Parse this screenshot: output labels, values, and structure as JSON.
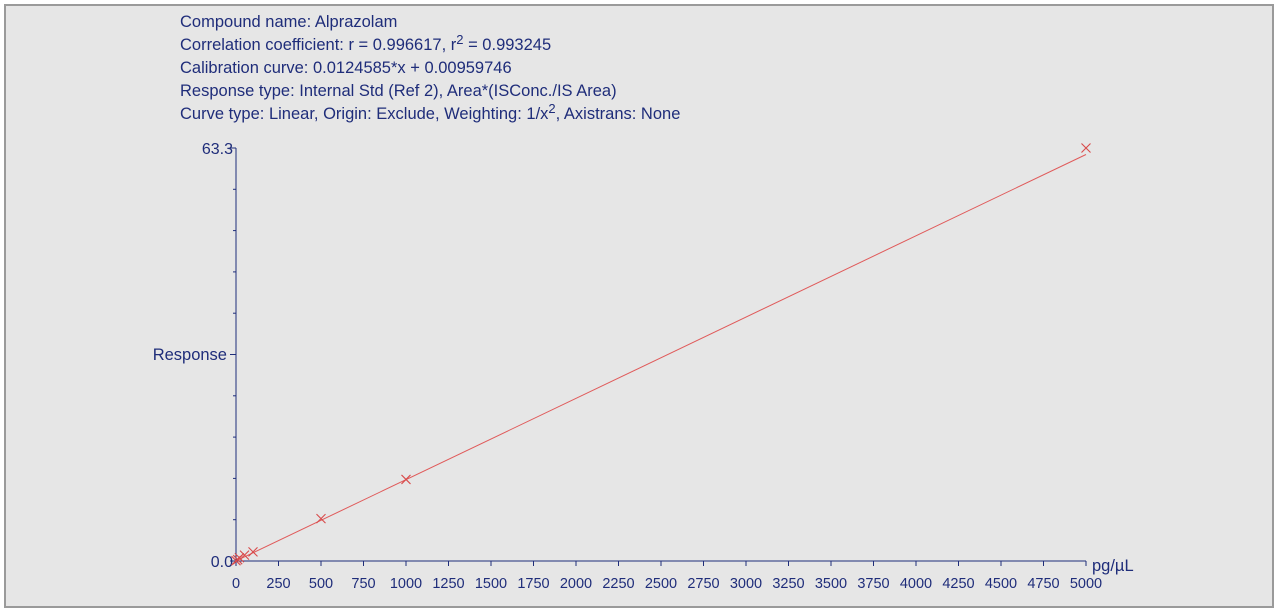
{
  "info": {
    "compound_label": "Compound name:",
    "compound_value": "Alprazolam",
    "corr_label": "Correlation coefficient:",
    "corr_r": "r = 0.996617,",
    "corr_r2_prefix": "r",
    "corr_r2_exp": "2",
    "corr_r2_value": " = 0.993245",
    "calib_label": "Calibration curve:",
    "calib_value": "0.0124585*x + 0.00959746",
    "response_label": "Response type:",
    "response_value": "Internal Std (Ref 2), Area*(ISConc./IS Area)",
    "curve_label": "Curve type:",
    "curve_value_1": "Linear, Origin: Exclude, Weighting: 1/x",
    "curve_value_exp": "2",
    "curve_value_2": ", Axistrans: None"
  },
  "chart_data": {
    "type": "scatter",
    "title": "",
    "xlabel": "pg/µL",
    "ylabel": "Response",
    "xlim": [
      0,
      5000
    ],
    "ylim": [
      0.0,
      63.3
    ],
    "y_tick_labels": [
      "0.0",
      "63.3"
    ],
    "x_ticks": [
      0,
      250,
      500,
      750,
      1000,
      1250,
      1500,
      1750,
      2000,
      2250,
      2500,
      2750,
      3000,
      3250,
      3500,
      3750,
      4000,
      4250,
      4500,
      4750,
      5000
    ],
    "calibration_line": {
      "slope": 0.0124585,
      "intercept": 0.00959746
    },
    "points": [
      {
        "x": 0,
        "y": 0.05
      },
      {
        "x": 10,
        "y": 0.2
      },
      {
        "x": 20,
        "y": 0.5
      },
      {
        "x": 50,
        "y": 0.9
      },
      {
        "x": 100,
        "y": 1.4
      },
      {
        "x": 500,
        "y": 6.5
      },
      {
        "x": 1000,
        "y": 12.5
      },
      {
        "x": 5000,
        "y": 63.3
      }
    ],
    "colors": {
      "axis": "#1f2d7a",
      "line": "#e05a5a",
      "marker": "#d84a4a",
      "background": "#e6e6e6"
    },
    "grid": false
  }
}
